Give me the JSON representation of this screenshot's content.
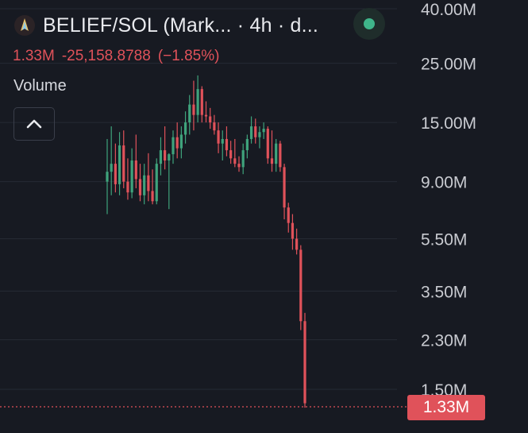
{
  "header": {
    "title": "BELIEF/SOL (Mark... · 4h · d...",
    "logo_icon": "belief-token-logo",
    "status_icon": "market-open-dot-icon"
  },
  "price": {
    "last": "1.33M",
    "change": "-25,158.8788",
    "change_pct": "(−1.85%)"
  },
  "volume": {
    "label": "Volume",
    "toggle_icon": "chevron-up-icon"
  },
  "colors": {
    "background": "#171a22",
    "up": "#3fa37c",
    "down": "#e0525a",
    "grid": "#262a34",
    "axis_text": "#c9cbd1"
  },
  "chart_data": {
    "type": "candlestick",
    "scale": "log",
    "ylim": [
      1330000,
      40000000
    ],
    "y_ticks": [
      "40.00M",
      "25.00M",
      "15.00M",
      "9.00M",
      "5.50M",
      "3.50M",
      "2.30M",
      "1.50M"
    ],
    "y_tick_values": [
      40000000,
      25000000,
      15000000,
      9000000,
      5500000,
      3500000,
      2300000,
      1500000
    ],
    "last_price_label": "1.33M",
    "last_price_value": 1330000,
    "grid": true,
    "candles": [
      {
        "o": 9.0,
        "h": 13.0,
        "l": 6.8,
        "c": 9.8
      },
      {
        "o": 9.8,
        "h": 14.5,
        "l": 8.0,
        "c": 10.5
      },
      {
        "o": 10.5,
        "h": 12.5,
        "l": 8.2,
        "c": 8.8
      },
      {
        "o": 8.8,
        "h": 13.8,
        "l": 8.0,
        "c": 12.3
      },
      {
        "o": 12.3,
        "h": 14.0,
        "l": 8.5,
        "c": 9.0
      },
      {
        "o": 9.0,
        "h": 11.0,
        "l": 7.7,
        "c": 8.2
      },
      {
        "o": 8.2,
        "h": 12.0,
        "l": 7.8,
        "c": 10.8
      },
      {
        "o": 10.8,
        "h": 13.5,
        "l": 8.5,
        "c": 9.2
      },
      {
        "o": 9.2,
        "h": 10.5,
        "l": 7.6,
        "c": 8.0
      },
      {
        "o": 8.0,
        "h": 10.5,
        "l": 7.4,
        "c": 9.5
      },
      {
        "o": 9.5,
        "h": 11.5,
        "l": 7.6,
        "c": 8.3
      },
      {
        "o": 8.3,
        "h": 10.0,
        "l": 7.4,
        "c": 7.6
      },
      {
        "o": 7.6,
        "h": 11.0,
        "l": 7.4,
        "c": 10.5
      },
      {
        "o": 10.5,
        "h": 13.2,
        "l": 9.5,
        "c": 11.8
      },
      {
        "o": 11.8,
        "h": 14.5,
        "l": 10.0,
        "c": 10.8
      },
      {
        "o": 10.8,
        "h": 11.5,
        "l": 7.1,
        "c": 11.4
      },
      {
        "o": 11.4,
        "h": 14.0,
        "l": 10.5,
        "c": 13.2
      },
      {
        "o": 13.2,
        "h": 15.0,
        "l": 11.0,
        "c": 12.0
      },
      {
        "o": 12.0,
        "h": 14.5,
        "l": 11.0,
        "c": 13.5
      },
      {
        "o": 13.5,
        "h": 16.5,
        "l": 12.5,
        "c": 15.0
      },
      {
        "o": 15.0,
        "h": 19.0,
        "l": 13.5,
        "c": 17.5
      },
      {
        "o": 17.5,
        "h": 21.5,
        "l": 14.0,
        "c": 16.0
      },
      {
        "o": 16.0,
        "h": 22.5,
        "l": 15.0,
        "c": 20.0
      },
      {
        "o": 20.0,
        "h": 20.5,
        "l": 15.0,
        "c": 16.0
      },
      {
        "o": 16.0,
        "h": 18.0,
        "l": 15.0,
        "c": 15.8
      },
      {
        "o": 15.8,
        "h": 17.0,
        "l": 14.2,
        "c": 15.0
      },
      {
        "o": 15.0,
        "h": 16.0,
        "l": 13.5,
        "c": 14.0
      },
      {
        "o": 14.0,
        "h": 15.0,
        "l": 11.5,
        "c": 12.5
      },
      {
        "o": 12.5,
        "h": 14.0,
        "l": 10.8,
        "c": 13.0
      },
      {
        "o": 13.0,
        "h": 14.5,
        "l": 11.2,
        "c": 11.8
      },
      {
        "o": 11.8,
        "h": 12.8,
        "l": 10.5,
        "c": 11.0
      },
      {
        "o": 11.0,
        "h": 13.0,
        "l": 10.2,
        "c": 10.5
      },
      {
        "o": 10.5,
        "h": 11.2,
        "l": 9.8,
        "c": 10.2
      },
      {
        "o": 10.2,
        "h": 12.5,
        "l": 9.6,
        "c": 11.8
      },
      {
        "o": 11.8,
        "h": 13.5,
        "l": 11.0,
        "c": 13.0
      },
      {
        "o": 13.0,
        "h": 15.8,
        "l": 12.5,
        "c": 14.5
      },
      {
        "o": 14.5,
        "h": 15.5,
        "l": 12.5,
        "c": 13.2
      },
      {
        "o": 13.2,
        "h": 14.5,
        "l": 12.0,
        "c": 13.8
      },
      {
        "o": 13.8,
        "h": 15.0,
        "l": 13.0,
        "c": 14.2
      },
      {
        "o": 14.2,
        "h": 14.5,
        "l": 10.5,
        "c": 11.0
      },
      {
        "o": 11.0,
        "h": 14.0,
        "l": 9.8,
        "c": 10.5
      },
      {
        "o": 10.5,
        "h": 13.0,
        "l": 9.8,
        "c": 12.5
      },
      {
        "o": 12.5,
        "h": 12.8,
        "l": 9.8,
        "c": 10.2
      },
      {
        "o": 10.2,
        "h": 10.5,
        "l": 6.5,
        "c": 7.2
      },
      {
        "o": 7.2,
        "h": 7.5,
        "l": 5.8,
        "c": 6.3
      },
      {
        "o": 6.3,
        "h": 6.8,
        "l": 5.0,
        "c": 5.5
      },
      {
        "o": 5.5,
        "h": 6.0,
        "l": 4.8,
        "c": 5.0
      },
      {
        "o": 5.0,
        "h": 5.2,
        "l": 2.5,
        "c": 2.7
      },
      {
        "o": 2.7,
        "h": 2.9,
        "l": 1.28,
        "c": 1.33
      }
    ]
  }
}
